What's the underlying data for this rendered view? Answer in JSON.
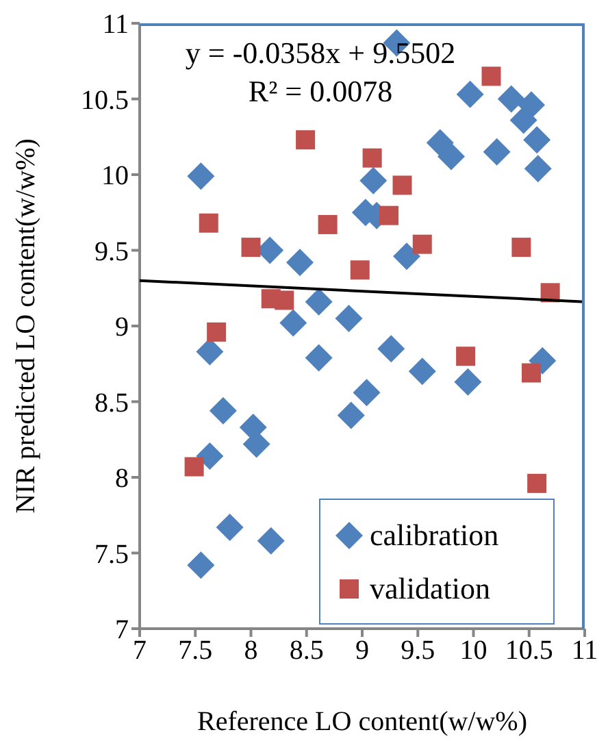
{
  "chart_data": {
    "type": "scatter",
    "xlabel": "Reference LO content(w/w%)",
    "ylabel": "NIR predicted LO content(w/w%)",
    "annotations": [
      "y = -0.0358x + 9.5502",
      "R² = 0.0078"
    ],
    "xlim": [
      7,
      11
    ],
    "xticks": [
      7,
      7.5,
      8,
      8.5,
      9,
      9.5,
      10,
      10.5,
      11
    ],
    "ylim": [
      7,
      11
    ],
    "yticks": [
      7,
      7.5,
      8,
      8.5,
      9,
      9.5,
      10,
      10.5,
      11
    ],
    "grid": false,
    "legend": "bottom right",
    "series": [
      {
        "name": "calibration",
        "color": "#4f81bd",
        "marker": "diamond",
        "x": [
          7.55,
          8.17,
          8.44,
          8.61,
          8.38,
          8.88,
          9.03,
          9.31,
          9.97,
          10.34,
          10.52,
          10.45,
          9.7,
          9.8,
          10.21,
          10.57,
          10.58,
          9.1,
          9.13,
          9.4,
          7.63,
          8.61,
          7.75,
          8.02,
          8.05,
          7.63,
          8.9,
          9.04,
          7.81,
          8.18,
          7.55,
          9.26,
          9.54,
          9.95,
          10.62
        ],
        "values": [
          9.99,
          9.5,
          9.42,
          9.16,
          9.02,
          9.05,
          9.75,
          10.87,
          10.53,
          10.5,
          10.46,
          10.36,
          10.21,
          10.12,
          10.15,
          10.23,
          10.04,
          9.96,
          9.73,
          9.46,
          8.83,
          8.79,
          8.44,
          8.33,
          8.22,
          8.14,
          8.41,
          8.56,
          7.67,
          7.58,
          7.42,
          8.85,
          8.7,
          8.63,
          8.77
        ]
      },
      {
        "name": "validation",
        "color": "#c0504d",
        "marker": "square",
        "x": [
          8.49,
          7.62,
          8.0,
          8.69,
          8.18,
          8.3,
          7.69,
          8.98,
          10.16,
          9.09,
          9.36,
          9.24,
          9.54,
          10.43,
          10.69,
          7.49,
          9.93,
          10.52,
          10.57
        ],
        "values": [
          10.23,
          9.68,
          9.52,
          9.67,
          9.18,
          9.17,
          8.96,
          9.37,
          10.65,
          10.11,
          9.93,
          9.73,
          9.54,
          9.52,
          9.22,
          8.07,
          8.8,
          8.69,
          7.96
        ]
      },
      {
        "type": "line",
        "color": "#000000",
        "marker": "none",
        "x": [
          7,
          11
        ],
        "values": [
          9.3,
          9.16
        ]
      }
    ]
  }
}
